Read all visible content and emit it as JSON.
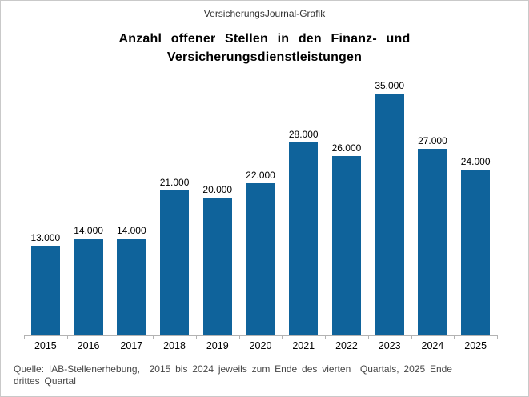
{
  "header": {
    "watermark": "VersicherungsJournal-Grafik"
  },
  "title": {
    "line1": "Anzahl offener Stellen in den Finanz- und",
    "line2": "Versicherungsdienstleistungen"
  },
  "source": {
    "line1": "Quelle: IAB-Stellenerhebung,  2015 bis 2024 jeweils zum Ende des vierten  Quartals, 2025 Ende",
    "line2": "drittes Quartal"
  },
  "colors": {
    "bar": "#0f639b",
    "axis": "#b3b3b3",
    "frame_border": "#c9c9c9",
    "source_text": "#474747"
  },
  "chart_data": {
    "type": "bar",
    "title": "Anzahl offener Stellen in den Finanz- und Versicherungsdienstleistungen",
    "categories": [
      "2015",
      "2016",
      "2017",
      "2018",
      "2019",
      "2020",
      "2021",
      "2022",
      "2023",
      "2024",
      "2025"
    ],
    "values": [
      13000,
      14000,
      14000,
      21000,
      20000,
      22000,
      28000,
      26000,
      35000,
      27000,
      24000
    ],
    "value_labels": [
      "13.000",
      "14.000",
      "14.000",
      "21.000",
      "20.000",
      "22.000",
      "28.000",
      "26.000",
      "35.000",
      "27.000",
      "24.000"
    ],
    "xlabel": "",
    "ylabel": "",
    "ylim": [
      0,
      38500
    ],
    "grid": false,
    "legend_position": "none",
    "data_labels": true
  }
}
